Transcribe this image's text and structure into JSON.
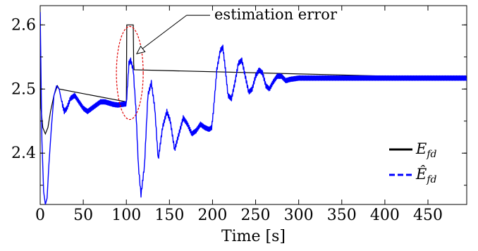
{
  "chart_data": {
    "type": "line",
    "title": "",
    "xlabel": "Time [s]",
    "ylabel": "",
    "xlim": [
      0,
      495
    ],
    "ylim": [
      2.32,
      2.63
    ],
    "xticks": [
      0,
      50,
      100,
      150,
      200,
      250,
      300,
      350,
      400,
      450
    ],
    "xtick_labels": [
      "0",
      "50",
      "100",
      "150",
      "200",
      "250",
      "300",
      "350",
      "400",
      "450"
    ],
    "yticks": [
      2.4,
      2.5,
      2.6
    ],
    "ytick_labels": [
      "2.4",
      "2.5",
      "2.6"
    ],
    "grid": false,
    "legend_position": "bottom-right",
    "annotation": "estimation error",
    "series": [
      {
        "name": "E_fd",
        "name_base": "E",
        "name_sub": "fd",
        "style": "solid",
        "color": "#000000",
        "x": [
          0,
          1,
          3,
          6,
          9,
          12,
          16,
          20,
          22,
          100,
          100.5,
          108,
          108.5,
          109,
          495
        ],
        "y": [
          2.62,
          2.47,
          2.44,
          2.43,
          2.44,
          2.465,
          2.49,
          2.505,
          2.5,
          2.48,
          2.6,
          2.6,
          2.54,
          2.53,
          2.517
        ]
      },
      {
        "name": "Ê_fd",
        "name_base": "Ê",
        "name_sub": "fd",
        "style": "dashed",
        "color": "#0000ff",
        "x": [
          0,
          2,
          4,
          6,
          8,
          10,
          13,
          16,
          19,
          22,
          25,
          28,
          31,
          35,
          40,
          45,
          50,
          55,
          60,
          65,
          70,
          75,
          80,
          85,
          90,
          95,
          100,
          103,
          105,
          108,
          111,
          114,
          117,
          121,
          125,
          129,
          133,
          137,
          142,
          147,
          151,
          156,
          161,
          166,
          171,
          176,
          181,
          186,
          191,
          196,
          199,
          201,
          205,
          209,
          212,
          215,
          218,
          222,
          226,
          230,
          234,
          238,
          242,
          246,
          250,
          254,
          258,
          262,
          266,
          270,
          275,
          280,
          285,
          290,
          300,
          320,
          350,
          400,
          450,
          495
        ],
        "y": [
          2.62,
          2.42,
          2.34,
          2.32,
          2.33,
          2.38,
          2.44,
          2.49,
          2.505,
          2.5,
          2.48,
          2.465,
          2.47,
          2.485,
          2.49,
          2.48,
          2.47,
          2.465,
          2.47,
          2.475,
          2.48,
          2.48,
          2.478,
          2.476,
          2.475,
          2.476,
          2.477,
          2.54,
          2.545,
          2.53,
          2.47,
          2.38,
          2.335,
          2.38,
          2.49,
          2.51,
          2.47,
          2.39,
          2.44,
          2.465,
          2.45,
          2.405,
          2.43,
          2.455,
          2.445,
          2.43,
          2.435,
          2.445,
          2.44,
          2.437,
          2.44,
          2.465,
          2.53,
          2.56,
          2.565,
          2.53,
          2.49,
          2.485,
          2.51,
          2.54,
          2.545,
          2.52,
          2.495,
          2.5,
          2.52,
          2.53,
          2.525,
          2.505,
          2.5,
          2.51,
          2.52,
          2.52,
          2.513,
          2.515,
          2.517,
          2.517,
          2.517,
          2.517,
          2.517,
          2.517
        ]
      }
    ]
  }
}
